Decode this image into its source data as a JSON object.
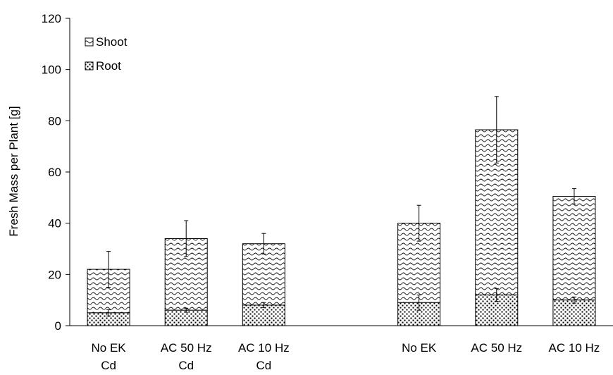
{
  "chart_data": {
    "type": "bar",
    "stacked": true,
    "categories": [
      "No EK\nCd",
      "AC 50 Hz\nCd",
      "AC 10 Hz\nCd",
      "",
      "No EK",
      "AC 50 Hz",
      "AC 10 Hz"
    ],
    "series": [
      {
        "name": "Root",
        "pattern": "dots",
        "values": [
          5,
          6,
          8,
          null,
          9,
          12,
          10
        ],
        "errors": [
          1.2,
          0.8,
          1.0,
          null,
          3.0,
          2.5,
          1.2
        ]
      },
      {
        "name": "Shoot",
        "pattern": "waves",
        "values": [
          17,
          28,
          24,
          null,
          31,
          64.5,
          40.5
        ],
        "totals": [
          22,
          34,
          32,
          null,
          40,
          76.5,
          50.5
        ],
        "errors": [
          7,
          7,
          4,
          null,
          7,
          13,
          3
        ]
      }
    ],
    "xlabel": "",
    "ylabel": "Fresh Mass per Plant [g]",
    "ylim": [
      0,
      120
    ],
    "yticks": [
      0,
      20,
      40,
      60,
      80,
      100,
      120
    ],
    "grid": false,
    "legend": {
      "placement": "top-left",
      "entries": [
        {
          "label": "Shoot",
          "pattern": "waves"
        },
        {
          "label": "Root",
          "pattern": "dots"
        }
      ]
    }
  }
}
